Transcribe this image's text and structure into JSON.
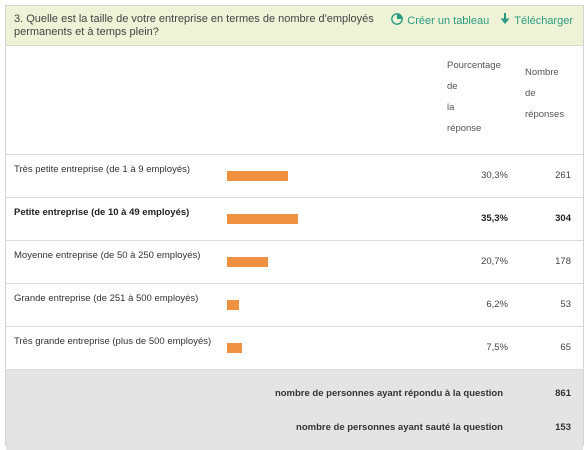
{
  "question": "3. Quelle est la taille de votre entreprise en termes de nombre d'employés permanents et à temps plein?",
  "actions": {
    "create_table": {
      "label": "Créer un tableau",
      "icon": "pie-chart-icon"
    },
    "download": {
      "label": "Télécharger",
      "icon": "download-arrow-icon"
    }
  },
  "columns": {
    "percentage": [
      "Pourcentage",
      "de",
      "la",
      "réponse"
    ],
    "count": [
      "Nombre",
      "de",
      "réponses"
    ]
  },
  "colors": {
    "header_bg": "#eef2d6",
    "accent": "#2a9b82",
    "bar": "#f09142",
    "summary_bg": "#e4e4e4"
  },
  "rows": [
    {
      "label": "Très petite entreprise (de 1 à 9 employés)",
      "percentage_text": "30,3%",
      "percentage": 30.3,
      "count": "261",
      "highlighted": false
    },
    {
      "label": "Petite entreprise (de 10 à 49 employés)",
      "percentage_text": "35,3%",
      "percentage": 35.3,
      "count": "304",
      "highlighted": true
    },
    {
      "label": "Moyenne entreprise (de 50 à 250 employés)",
      "percentage_text": "20,7%",
      "percentage": 20.7,
      "count": "178",
      "highlighted": false
    },
    {
      "label": "Grande entreprise (de 251 à 500 employés)",
      "percentage_text": "6,2%",
      "percentage": 6.2,
      "count": "53",
      "highlighted": false
    },
    {
      "label": "Très grande entreprise (plus de 500 employés)",
      "percentage_text": "7,5%",
      "percentage": 7.5,
      "count": "65",
      "highlighted": false
    }
  ],
  "summary": {
    "answered_label": "nombre de personnes ayant répondu à la question",
    "answered_value": "861",
    "skipped_label": "nombre de personnes ayant sauté la question",
    "skipped_value": "153"
  }
}
